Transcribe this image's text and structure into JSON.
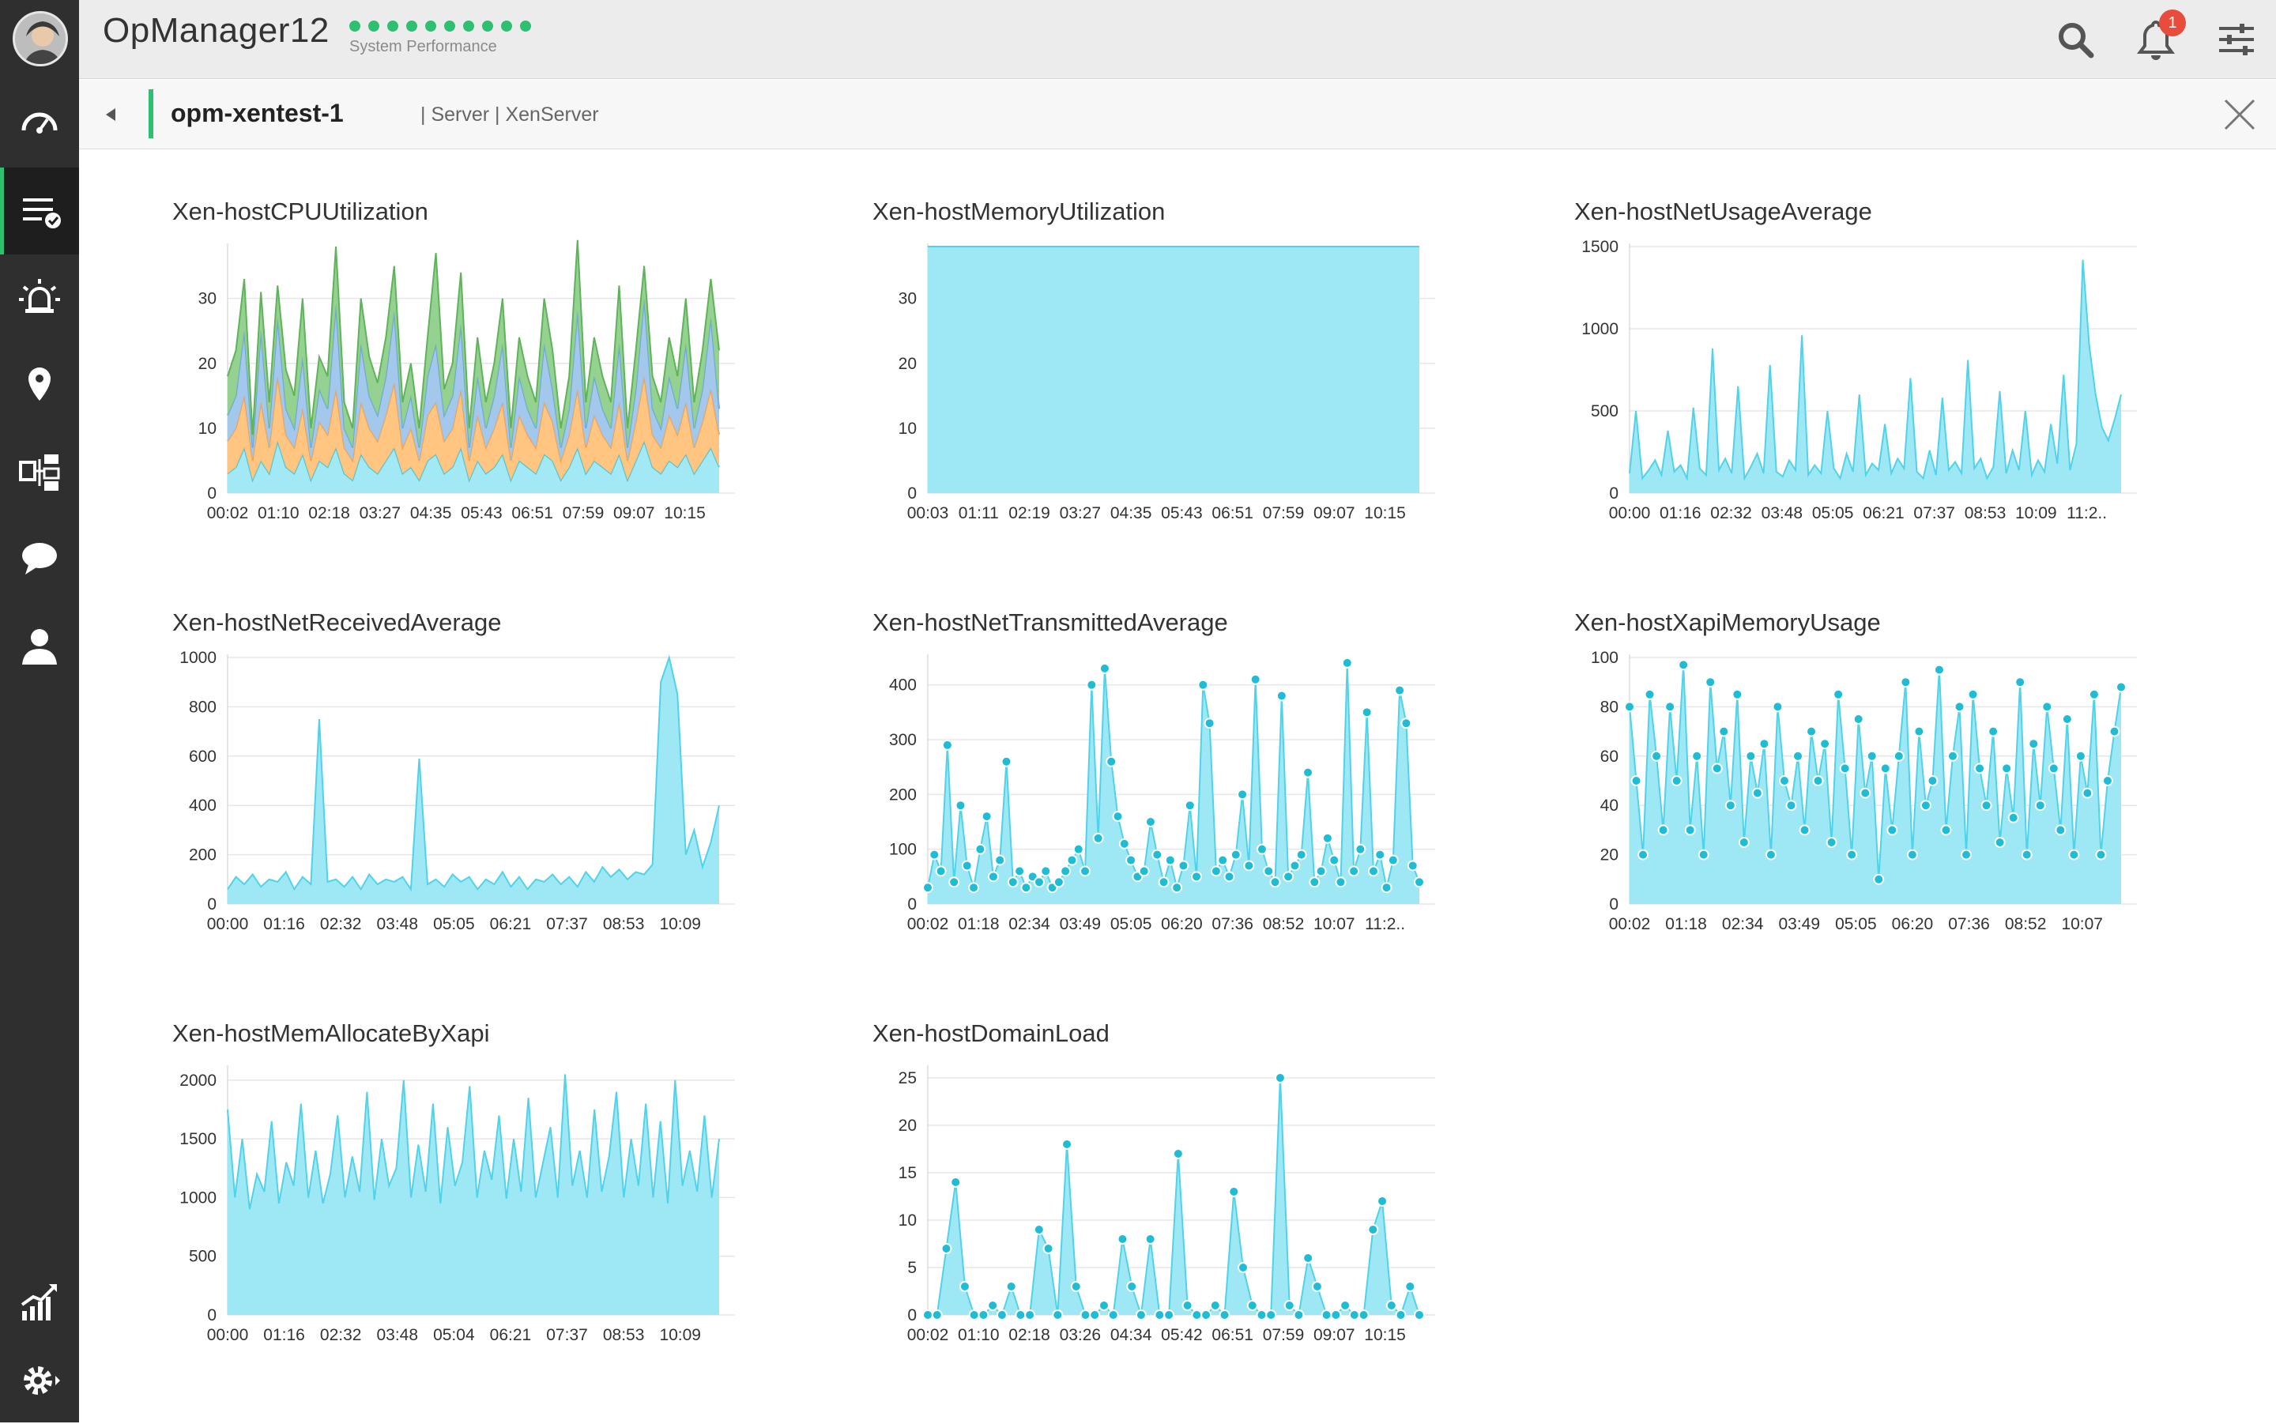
{
  "app": {
    "title": "OpManager12",
    "subtitle": "System Performance",
    "notification_count": "1",
    "status_dot_color": "#2fbf71"
  },
  "sidebar": {
    "items": [
      {
        "icon": "dashboard-gauge-icon"
      },
      {
        "icon": "inventory-checklist-icon",
        "active": true
      },
      {
        "icon": "alarm-siren-icon"
      },
      {
        "icon": "map-pin-icon"
      },
      {
        "icon": "workflow-icon"
      },
      {
        "icon": "chat-icon"
      },
      {
        "icon": "user-icon"
      },
      {
        "icon": "reports-chart-icon"
      },
      {
        "icon": "settings-gear-icon"
      }
    ]
  },
  "device": {
    "name": "opm-xentest-1",
    "meta": "| Server | XenServer"
  },
  "colors": {
    "cyan": "#4fd3ea",
    "cyan_fill": "#9ee7f4",
    "orange": "#ffc27a",
    "blue": "#9ec5ea",
    "green": "#8fcf8a",
    "accent": "#2fbf71"
  },
  "chart_data": [
    {
      "id": "cpu",
      "title": "Xen-hostCPUUtilization",
      "type": "area",
      "stacked": true,
      "x_labels": [
        "00:02",
        "01:10",
        "02:18",
        "03:27",
        "04:35",
        "05:43",
        "06:51",
        "07:59",
        "09:07",
        "10:15"
      ],
      "yticks": [
        0,
        10,
        20,
        30
      ],
      "ylim": [
        0,
        38
      ],
      "series": [
        {
          "values": [
            3,
            4,
            7,
            2,
            5,
            3,
            8,
            4,
            3,
            6,
            2,
            5,
            4,
            7,
            3,
            2,
            6,
            4,
            3,
            5,
            7,
            3,
            4,
            2,
            5,
            6,
            3,
            4,
            7,
            2,
            5,
            3,
            4,
            6,
            2,
            5,
            4,
            3,
            6,
            5,
            2,
            4,
            7,
            3,
            5,
            4,
            3,
            6,
            2,
            5,
            8,
            4,
            3,
            5,
            4,
            6,
            3,
            5,
            7,
            4
          ]
        },
        {
          "values": [
            5,
            6,
            8,
            3,
            9,
            4,
            10,
            5,
            4,
            7,
            3,
            6,
            5,
            9,
            4,
            3,
            8,
            6,
            5,
            7,
            10,
            4,
            6,
            3,
            7,
            8,
            5,
            6,
            9,
            3,
            7,
            4,
            6,
            8,
            3,
            7,
            5,
            4,
            8,
            6,
            3,
            5,
            9,
            4,
            7,
            5,
            4,
            8,
            3,
            6,
            10,
            5,
            4,
            7,
            5,
            8,
            4,
            6,
            9,
            5
          ]
        },
        {
          "values": [
            4,
            5,
            10,
            2,
            11,
            3,
            9,
            4,
            3,
            8,
            2,
            5,
            4,
            13,
            3,
            2,
            9,
            5,
            4,
            6,
            11,
            3,
            5,
            2,
            6,
            9,
            4,
            5,
            10,
            2,
            6,
            3,
            5,
            9,
            2,
            6,
            4,
            3,
            9,
            5,
            2,
            4,
            12,
            3,
            6,
            4,
            3,
            9,
            2,
            5,
            12,
            4,
            3,
            6,
            4,
            9,
            3,
            5,
            11,
            4
          ]
        },
        {
          "values": [
            6,
            7,
            8,
            2,
            6,
            4,
            5,
            6,
            5,
            9,
            3,
            5,
            5,
            9,
            4,
            3,
            7,
            6,
            5,
            6,
            7,
            4,
            5,
            3,
            6,
            14,
            4,
            5,
            8,
            3,
            6,
            4,
            5,
            7,
            3,
            6,
            5,
            4,
            7,
            6,
            3,
            5,
            11,
            4,
            6,
            5,
            4,
            9,
            3,
            6,
            5,
            5,
            4,
            6,
            5,
            7,
            4,
            6,
            6,
            9
          ]
        }
      ]
    },
    {
      "id": "mem",
      "title": "Xen-hostMemoryUtilization",
      "type": "area",
      "x_labels": [
        "00:03",
        "01:11",
        "02:19",
        "03:27",
        "04:35",
        "05:43",
        "06:51",
        "07:59",
        "09:07",
        "10:15"
      ],
      "yticks": [
        0,
        10,
        20,
        30
      ],
      "ylim": [
        0,
        38
      ],
      "series": [
        {
          "values": [
            38,
            38,
            38,
            38,
            38,
            38,
            38,
            38,
            38,
            38,
            38,
            38,
            38,
            38,
            38,
            38,
            38,
            38,
            38,
            38,
            38,
            38,
            38,
            38,
            38,
            38,
            38,
            38,
            38,
            38
          ]
        }
      ]
    },
    {
      "id": "netusage",
      "title": "Xen-hostNetUsageAverage",
      "type": "area",
      "x_labels": [
        "00:00",
        "01:16",
        "02:32",
        "03:48",
        "05:05",
        "06:21",
        "07:37",
        "08:53",
        "10:09",
        "11:2.."
      ],
      "yticks": [
        0,
        500,
        1000,
        1500
      ],
      "ylim": [
        0,
        1500
      ],
      "series": [
        {
          "values": [
            120,
            500,
            90,
            140,
            200,
            110,
            380,
            130,
            170,
            90,
            520,
            150,
            110,
            880,
            140,
            210,
            120,
            650,
            90,
            160,
            240,
            120,
            780,
            130,
            100,
            200,
            140,
            960,
            110,
            170,
            120,
            500,
            150,
            90,
            240,
            130,
            600,
            110,
            180,
            140,
            420,
            120,
            210,
            150,
            700,
            130,
            90,
            260,
            110,
            580,
            140,
            190,
            120,
            810,
            150,
            210,
            90,
            160,
            620,
            120,
            260,
            140,
            500,
            110,
            200,
            130,
            420,
            180,
            720,
            140,
            300,
            1420,
            900,
            600,
            400,
            320,
            450,
            600
          ]
        }
      ]
    },
    {
      "id": "netrecv",
      "title": "Xen-hostNetReceivedAverage",
      "type": "area",
      "x_labels": [
        "00:00",
        "01:16",
        "02:32",
        "03:48",
        "05:05",
        "06:21",
        "07:37",
        "08:53",
        "10:09"
      ],
      "yticks": [
        0,
        200,
        400,
        600,
        800,
        1000
      ],
      "ylim": [
        0,
        1000
      ],
      "series": [
        {
          "values": [
            60,
            110,
            80,
            120,
            70,
            100,
            90,
            130,
            60,
            110,
            80,
            750,
            90,
            100,
            70,
            110,
            60,
            120,
            80,
            100,
            90,
            110,
            60,
            590,
            80,
            100,
            70,
            120,
            90,
            110,
            60,
            100,
            80,
            130,
            70,
            110,
            60,
            100,
            90,
            120,
            80,
            110,
            70,
            130,
            90,
            150,
            110,
            140,
            100,
            130,
            120,
            160,
            900,
            1000,
            850,
            200,
            300,
            150,
            250,
            400
          ]
        }
      ]
    },
    {
      "id": "nettrans",
      "title": "Xen-hostNetTransmittedAverage",
      "type": "line",
      "markers": true,
      "x_labels": [
        "00:02",
        "01:18",
        "02:34",
        "03:49",
        "05:05",
        "06:20",
        "07:36",
        "08:52",
        "10:07",
        "11:2.."
      ],
      "yticks": [
        0,
        100,
        200,
        300,
        400
      ],
      "ylim": [
        0,
        450
      ],
      "series": [
        {
          "values": [
            30,
            90,
            60,
            290,
            40,
            180,
            70,
            30,
            100,
            160,
            50,
            80,
            260,
            40,
            60,
            30,
            50,
            40,
            60,
            30,
            40,
            60,
            80,
            100,
            60,
            400,
            120,
            430,
            260,
            160,
            110,
            80,
            50,
            60,
            150,
            90,
            40,
            80,
            30,
            70,
            180,
            50,
            400,
            330,
            60,
            80,
            50,
            90,
            200,
            70,
            410,
            100,
            60,
            40,
            380,
            50,
            70,
            90,
            240,
            40,
            60,
            120,
            80,
            40,
            440,
            60,
            100,
            350,
            60,
            90,
            30,
            80,
            390,
            330,
            70,
            40
          ]
        }
      ]
    },
    {
      "id": "xapimem",
      "title": "Xen-hostXapiMemoryUsage",
      "type": "line",
      "markers": true,
      "x_labels": [
        "00:02",
        "01:18",
        "02:34",
        "03:49",
        "05:05",
        "06:20",
        "07:36",
        "08:52",
        "10:07"
      ],
      "yticks": [
        0,
        20,
        40,
        60,
        80,
        100
      ],
      "ylim": [
        0,
        100
      ],
      "series": [
        {
          "values": [
            80,
            50,
            20,
            85,
            60,
            30,
            80,
            50,
            97,
            30,
            60,
            20,
            90,
            55,
            70,
            40,
            85,
            25,
            60,
            45,
            65,
            20,
            80,
            50,
            40,
            60,
            30,
            70,
            50,
            65,
            25,
            85,
            55,
            20,
            75,
            45,
            60,
            10,
            55,
            30,
            60,
            90,
            20,
            70,
            40,
            50,
            95,
            30,
            60,
            80,
            20,
            85,
            55,
            40,
            70,
            25,
            55,
            35,
            90,
            20,
            65,
            40,
            80,
            55,
            30,
            75,
            20,
            60,
            45,
            85,
            20,
            50,
            70,
            88
          ]
        }
      ]
    },
    {
      "id": "memalloc",
      "title": "Xen-hostMemAllocateByXapi",
      "type": "area",
      "x_labels": [
        "00:00",
        "01:16",
        "02:32",
        "03:48",
        "05:04",
        "06:21",
        "07:37",
        "08:53",
        "10:09"
      ],
      "yticks": [
        0,
        500,
        1000,
        1500,
        2000
      ],
      "ylim": [
        0,
        2100
      ],
      "series": [
        {
          "values": [
            1750,
            1000,
            1500,
            900,
            1200,
            1050,
            1650,
            950,
            1300,
            1100,
            1800,
            1000,
            1400,
            950,
            1200,
            1700,
            1000,
            1350,
            1050,
            1900,
            980,
            1500,
            1100,
            1250,
            2000,
            1000,
            1450,
            1050,
            1800,
            950,
            1600,
            1100,
            1300,
            1950,
            1000,
            1400,
            1150,
            1700,
            990,
            1500,
            1050,
            1850,
            1000,
            1300,
            1600,
            1000,
            2050,
            1100,
            1400,
            1000,
            1750,
            1050,
            1350,
            1900,
            1000,
            1500,
            1100,
            1800,
            1000,
            1650,
            950,
            2000,
            1100,
            1400,
            1050,
            1700,
            1000,
            1500
          ]
        }
      ]
    },
    {
      "id": "domload",
      "title": "Xen-hostDomainLoad",
      "type": "line",
      "markers": true,
      "x_labels": [
        "00:02",
        "01:10",
        "02:18",
        "03:26",
        "04:34",
        "05:42",
        "06:51",
        "07:59",
        "09:07",
        "10:15"
      ],
      "yticks": [
        0,
        5,
        10,
        15,
        20,
        25
      ],
      "ylim": [
        0,
        26
      ],
      "series": [
        {
          "values": [
            0,
            0,
            7,
            14,
            3,
            0,
            0,
            1,
            0,
            3,
            0,
            0,
            9,
            7,
            0,
            18,
            3,
            0,
            0,
            1,
            0,
            8,
            3,
            0,
            8,
            0,
            0,
            17,
            1,
            0,
            0,
            1,
            0,
            13,
            5,
            1,
            0,
            0,
            25,
            1,
            0,
            6,
            3,
            0,
            0,
            1,
            0,
            0,
            9,
            12,
            1,
            0,
            3,
            0
          ]
        }
      ]
    }
  ]
}
